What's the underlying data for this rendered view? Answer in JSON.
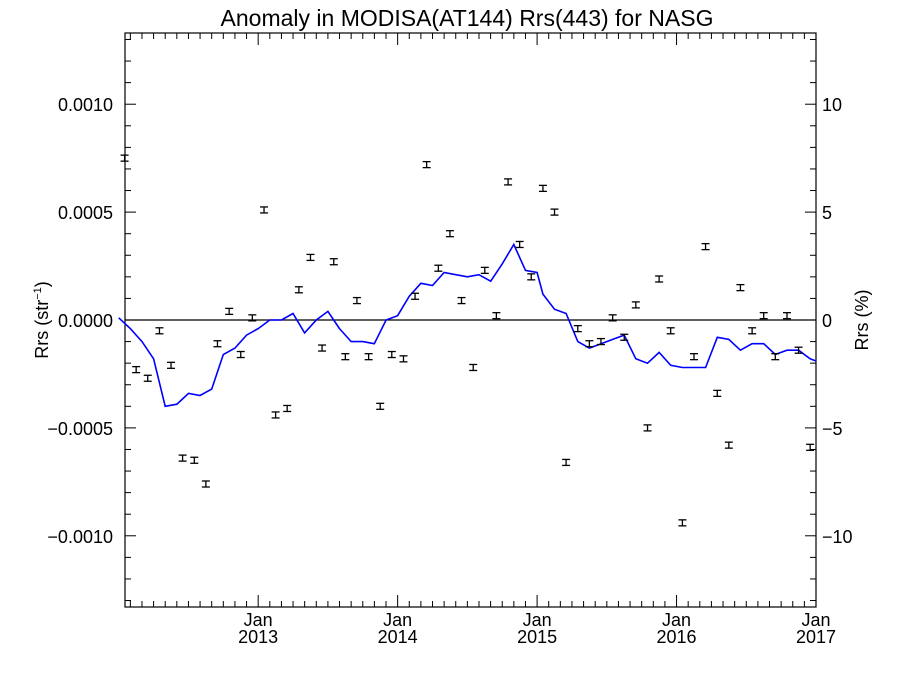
{
  "chart_data": {
    "type": "scatter",
    "title": "Anomaly in MODISA(AT144) Rrs(443) for NASG",
    "ylabel_left": "Rrs (str",
    "ylabel_left_sup": "−1",
    "ylabel_left_close": ")",
    "ylabel_right": "Rrs (%)",
    "ylim": [
      -0.00133,
      0.00133
    ],
    "y2lim": [
      -13.3,
      13.3
    ],
    "xlim": [
      2012.045,
      2017.0
    ],
    "y_ticks": [
      {
        "v": 0.001,
        "label": "0.0010"
      },
      {
        "v": 0.0005,
        "label": "0.0005"
      },
      {
        "v": 0.0,
        "label": "0.0000"
      },
      {
        "v": -0.0005,
        "label": "−0.0005"
      },
      {
        "v": -0.001,
        "label": "−0.0010"
      }
    ],
    "y2_ticks": [
      {
        "v": 10,
        "label": "10"
      },
      {
        "v": 5,
        "label": "5"
      },
      {
        "v": 0,
        "label": "0"
      },
      {
        "v": -5,
        "label": "−5"
      },
      {
        "v": -10,
        "label": "−10"
      }
    ],
    "x_ticks": [
      {
        "v": 2013.0,
        "month": "Jan",
        "year": "2013"
      },
      {
        "v": 2014.0,
        "month": "Jan",
        "year": "2014"
      },
      {
        "v": 2015.0,
        "month": "Jan",
        "year": "2015"
      },
      {
        "v": 2016.0,
        "month": "Jan",
        "year": "2016"
      },
      {
        "v": 2017.0,
        "month": "Jan",
        "year": "2017"
      }
    ],
    "zero_line": 0,
    "series": [
      {
        "kind": "points",
        "color": "#000000",
        "x": [
          2012.042,
          2012.125,
          2012.208,
          2012.292,
          2012.375,
          2012.458,
          2012.542,
          2012.625,
          2012.708,
          2012.792,
          2012.875,
          2012.958,
          2013.042,
          2013.125,
          2013.208,
          2013.292,
          2013.375,
          2013.458,
          2013.542,
          2013.625,
          2013.708,
          2013.792,
          2013.875,
          2013.958,
          2014.042,
          2014.125,
          2014.208,
          2014.292,
          2014.375,
          2014.458,
          2014.542,
          2014.625,
          2014.708,
          2014.792,
          2014.875,
          2014.958,
          2015.042,
          2015.125,
          2015.208,
          2015.292,
          2015.375,
          2015.458,
          2015.542,
          2015.625,
          2015.708,
          2015.792,
          2015.875,
          2015.958,
          2016.042,
          2016.125,
          2016.208,
          2016.292,
          2016.375,
          2016.458,
          2016.542,
          2016.625,
          2016.708,
          2016.792,
          2016.875,
          2016.958
        ],
        "y": [
          0.00075,
          -0.00023,
          -0.00027,
          -5e-05,
          -0.00021,
          -0.00064,
          -0.00065,
          -0.00076,
          -0.00011,
          4e-05,
          -0.00016,
          1e-05,
          0.00051,
          -0.00044,
          -0.00041,
          0.00014,
          0.00029,
          -0.00013,
          0.00027,
          -0.00017,
          9e-05,
          -0.00017,
          -0.0004,
          -0.00016,
          -0.00018,
          0.00011,
          0.00072,
          0.00024,
          0.0004,
          9e-05,
          -0.00022,
          0.00023,
          2e-05,
          0.00064,
          0.00035,
          0.0002,
          0.00061,
          0.0005,
          -0.00066,
          -4e-05,
          -0.00011,
          -0.0001,
          1e-05,
          -8e-05,
          7e-05,
          -0.0005,
          0.00019,
          -5e-05,
          -0.00094,
          -0.00017,
          0.00034,
          -0.00034,
          -0.00058,
          0.00015,
          -5e-05,
          2e-05,
          -0.00017,
          2e-05,
          -0.00014,
          -0.00059
        ]
      },
      {
        "kind": "line",
        "color": "#0000ff",
        "x": [
          2012.0,
          2012.083,
          2012.167,
          2012.25,
          2012.333,
          2012.417,
          2012.5,
          2012.583,
          2012.667,
          2012.75,
          2012.833,
          2012.917,
          2013.0,
          2013.083,
          2013.167,
          2013.25,
          2013.333,
          2013.417,
          2013.5,
          2013.583,
          2013.667,
          2013.75,
          2013.833,
          2013.917,
          2014.0,
          2014.083,
          2014.167,
          2014.25,
          2014.333,
          2014.417,
          2014.5,
          2014.583,
          2014.667,
          2014.75,
          2014.833,
          2014.917,
          2015.0,
          2015.042,
          2015.125,
          2015.208,
          2015.292,
          2015.375,
          2015.458,
          2015.542,
          2015.625,
          2015.708,
          2015.792,
          2015.875,
          2015.958,
          2016.042,
          2016.125,
          2016.208,
          2016.292,
          2016.375,
          2016.458,
          2016.542,
          2016.625,
          2016.708,
          2016.792,
          2016.875,
          2016.958,
          2017.0
        ],
        "y": [
          1e-05,
          -4e-05,
          -0.0001,
          -0.00018,
          -0.0004,
          -0.00039,
          -0.00034,
          -0.00035,
          -0.00032,
          -0.00016,
          -0.00013,
          -7e-05,
          -4e-05,
          0.0,
          0.0,
          3e-05,
          -6e-05,
          0.0,
          4e-05,
          -4e-05,
          -0.0001,
          -0.0001,
          -0.00011,
          0.0,
          2e-05,
          0.00011,
          0.00017,
          0.00016,
          0.00022,
          0.00021,
          0.0002,
          0.00021,
          0.00018,
          0.00026,
          0.00035,
          0.00023,
          0.00022,
          0.00012,
          5e-05,
          3e-05,
          -0.0001,
          -0.00013,
          -0.00011,
          -9e-05,
          -7e-05,
          -0.00018,
          -0.0002,
          -0.00015,
          -0.00021,
          -0.00022,
          -0.00022,
          -0.00022,
          -8e-05,
          -9e-05,
          -0.00014,
          -0.00011,
          -0.00011,
          -0.00016,
          -0.00014,
          -0.00014,
          -0.00018,
          -0.00019
        ]
      }
    ]
  }
}
